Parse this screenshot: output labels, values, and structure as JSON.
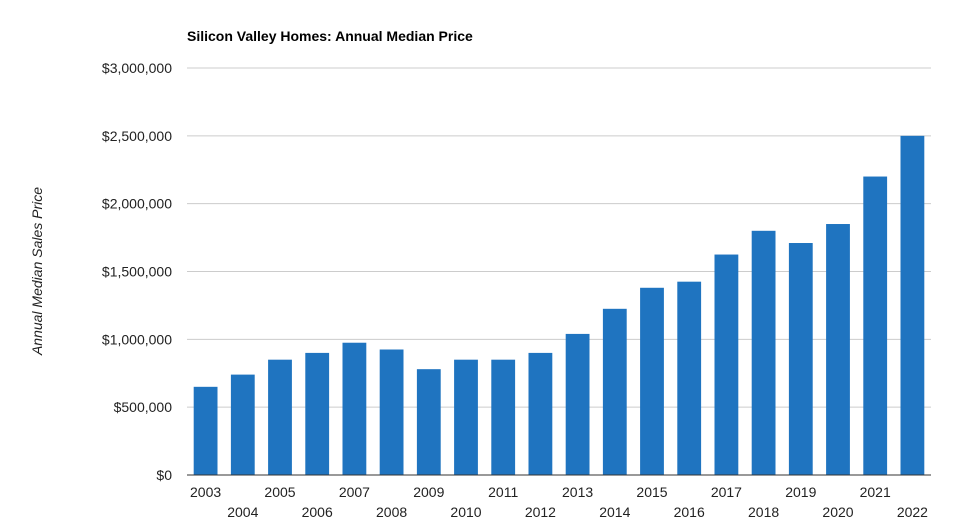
{
  "chart_data": {
    "type": "bar",
    "title": "Silicon Valley Homes: Annual Median Price",
    "xlabel": "",
    "ylabel": "Annual Median Sales Price",
    "categories": [
      "2003",
      "2004",
      "2005",
      "2006",
      "2007",
      "2008",
      "2009",
      "2010",
      "2011",
      "2012",
      "2013",
      "2014",
      "2015",
      "2016",
      "2017",
      "2018",
      "2019",
      "2020",
      "2021",
      "2022"
    ],
    "values": [
      650000,
      740000,
      850000,
      900000,
      975000,
      925000,
      780000,
      850000,
      850000,
      900000,
      1040000,
      1225000,
      1380000,
      1425000,
      1625000,
      1800000,
      1710000,
      1850000,
      2200000,
      2500000
    ],
    "ylim": [
      0,
      3000000
    ],
    "yticks": [
      0,
      500000,
      1000000,
      1500000,
      2000000,
      2500000,
      3000000
    ],
    "ytick_labels": [
      "$0",
      "$500,000",
      "$1,000,000",
      "$1,500,000",
      "$2,000,000",
      "$2,500,000",
      "$3,000,000"
    ],
    "bar_color": "#1f74c0",
    "grid": true,
    "legend": "none"
  }
}
